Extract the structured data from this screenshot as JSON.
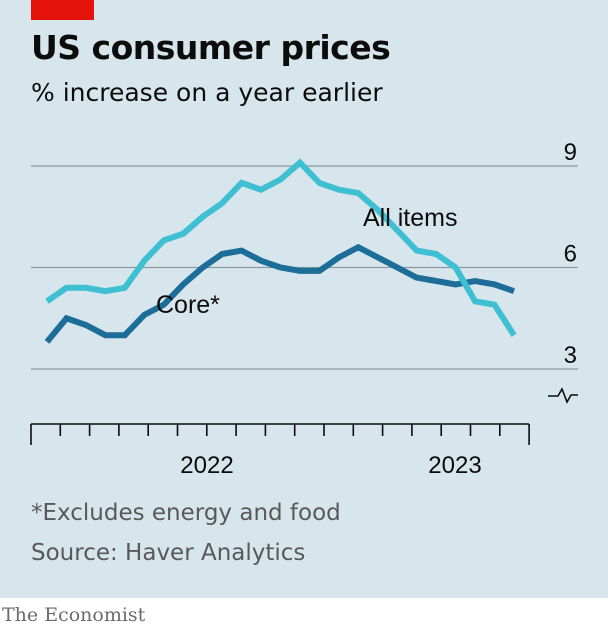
{
  "header": {
    "title": "US consumer prices",
    "subtitle": "% increase on a year earlier"
  },
  "footer": {
    "footnote": "*Excludes energy and food",
    "source": "Source: Haver Analytics",
    "brand": "The Economist"
  },
  "colors": {
    "panel": "#d7e5ed",
    "accent_red": "#e3120b",
    "all_items": "#3ebfd2",
    "core": "#1d6d99",
    "grid": "#8a9aa3",
    "text": "#0c0c0c",
    "muted": "#595959"
  },
  "chart_data": {
    "type": "line",
    "title": "US consumer prices",
    "subtitle": "% increase on a year earlier",
    "xlabel": "",
    "ylabel": "",
    "x": [
      "2021-05",
      "2021-06",
      "2021-07",
      "2021-08",
      "2021-09",
      "2021-10",
      "2021-11",
      "2021-12",
      "2022-01",
      "2022-02",
      "2022-03",
      "2022-04",
      "2022-05",
      "2022-06",
      "2022-07",
      "2022-08",
      "2022-09",
      "2022-10",
      "2022-11",
      "2022-12",
      "2023-01",
      "2023-02",
      "2023-03",
      "2023-04",
      "2023-05"
    ],
    "xtick_labels": [
      "2022",
      "2023"
    ],
    "yticks": [
      3,
      6,
      9
    ],
    "ylim": [
      3,
      9
    ],
    "grid": true,
    "axis_break": true,
    "series": [
      {
        "name": "All items",
        "color": "#3ebfd2",
        "values": [
          5.0,
          5.4,
          5.4,
          5.3,
          5.4,
          6.2,
          6.8,
          7.0,
          7.5,
          7.9,
          8.5,
          8.3,
          8.6,
          9.1,
          8.5,
          8.3,
          8.2,
          7.7,
          7.1,
          6.5,
          6.4,
          6.0,
          5.0,
          4.9,
          4.0
        ]
      },
      {
        "name": "Core*",
        "color": "#1d6d99",
        "values": [
          3.8,
          4.5,
          4.3,
          4.0,
          4.0,
          4.6,
          4.9,
          5.5,
          6.0,
          6.4,
          6.5,
          6.2,
          6.0,
          5.9,
          5.9,
          6.3,
          6.6,
          6.3,
          6.0,
          5.7,
          5.6,
          5.5,
          5.6,
          5.5,
          5.3
        ]
      }
    ]
  }
}
